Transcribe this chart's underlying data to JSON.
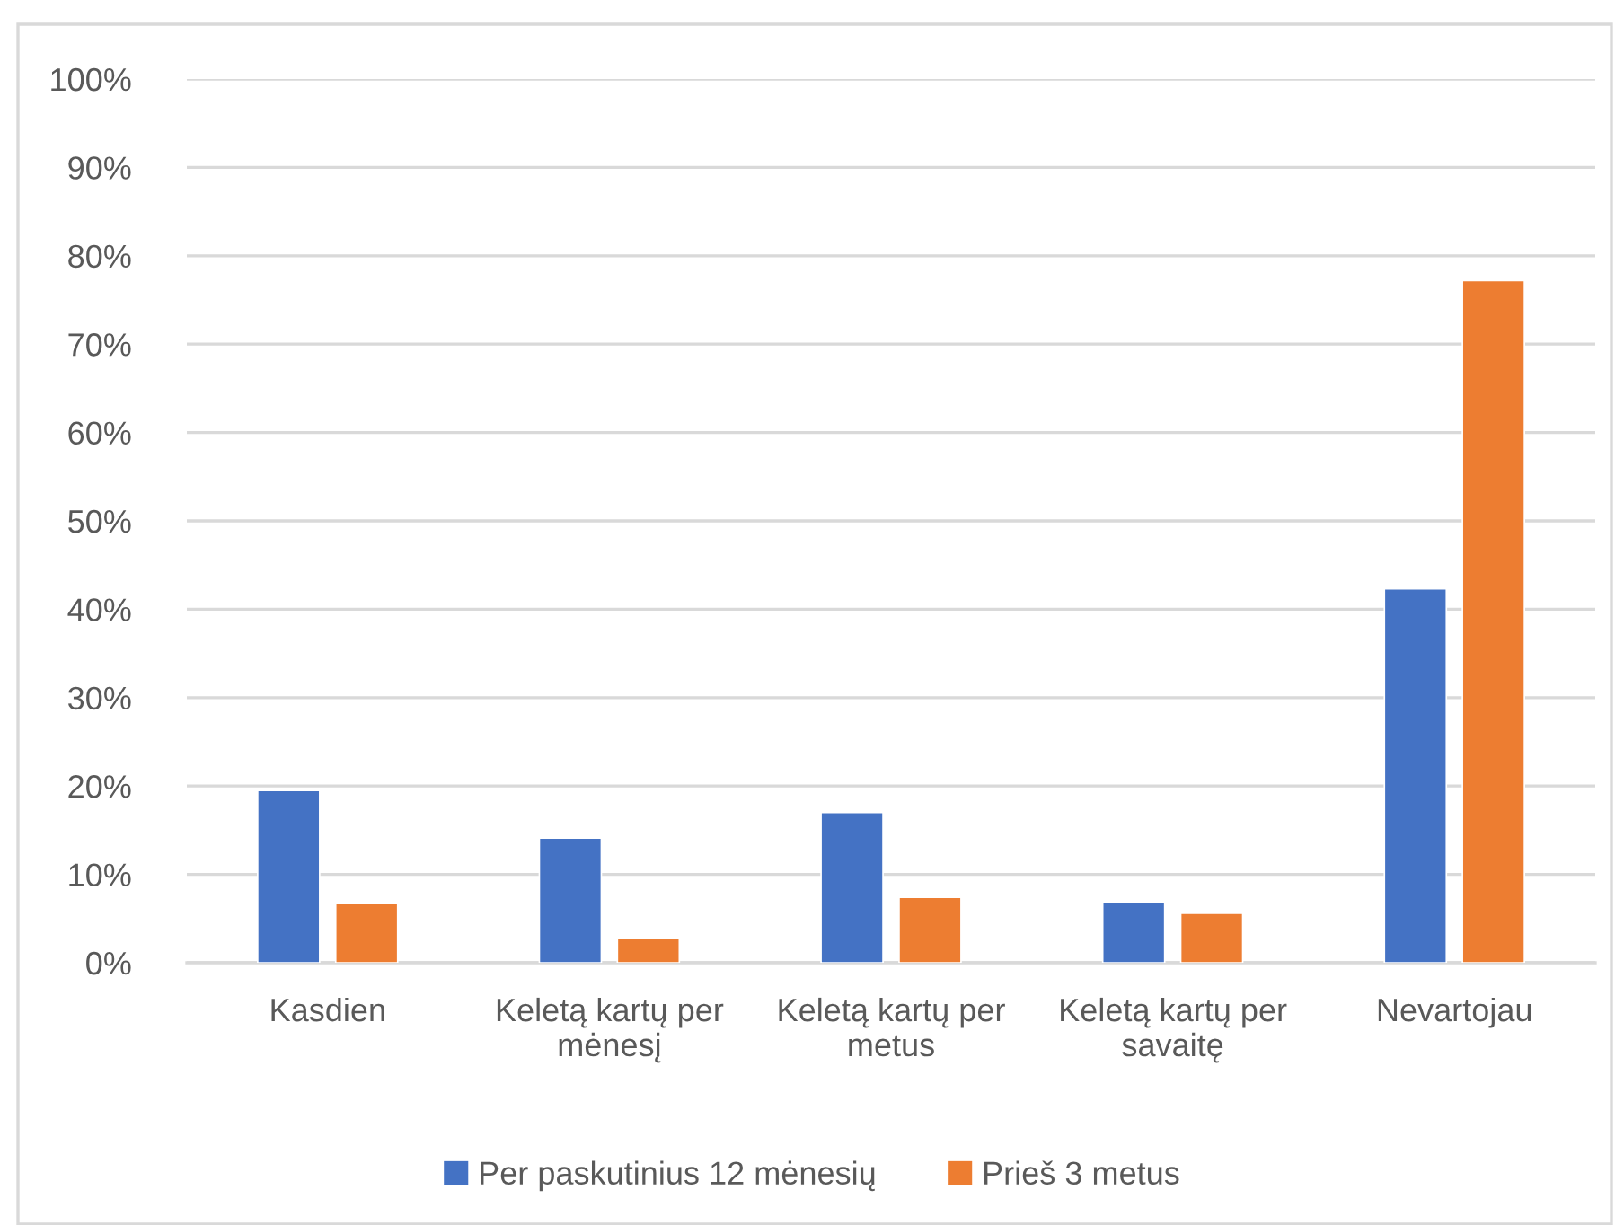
{
  "chart_data": {
    "type": "bar",
    "categories": [
      "Kasdien",
      "Keletą kartų per mėnesį",
      "Keletą kartų per metus",
      "Keletą kartų per savaitę",
      "Nevartojau"
    ],
    "series": [
      {
        "name": "Per paskutinius 12 mėnesių",
        "color": "#4472c4",
        "values": [
          19.5,
          14.1,
          17.0,
          6.8,
          42.3
        ]
      },
      {
        "name": "Prieš 3 metus",
        "color": "#ed7d31",
        "values": [
          6.7,
          2.8,
          7.4,
          5.6,
          77.2
        ]
      }
    ],
    "ylim": [
      0,
      100
    ],
    "yticks": [
      {
        "value": 0,
        "label": "0%"
      },
      {
        "value": 10,
        "label": "10%"
      },
      {
        "value": 20,
        "label": "20%"
      },
      {
        "value": 30,
        "label": "30%"
      },
      {
        "value": 40,
        "label": "40%"
      },
      {
        "value": 50,
        "label": "50%"
      },
      {
        "value": 60,
        "label": "60%"
      },
      {
        "value": 70,
        "label": "70%"
      },
      {
        "value": 80,
        "label": "80%"
      },
      {
        "value": 90,
        "label": "90%"
      },
      {
        "value": 100,
        "label": "100%"
      }
    ],
    "grid": "y",
    "legend": "bottom"
  }
}
